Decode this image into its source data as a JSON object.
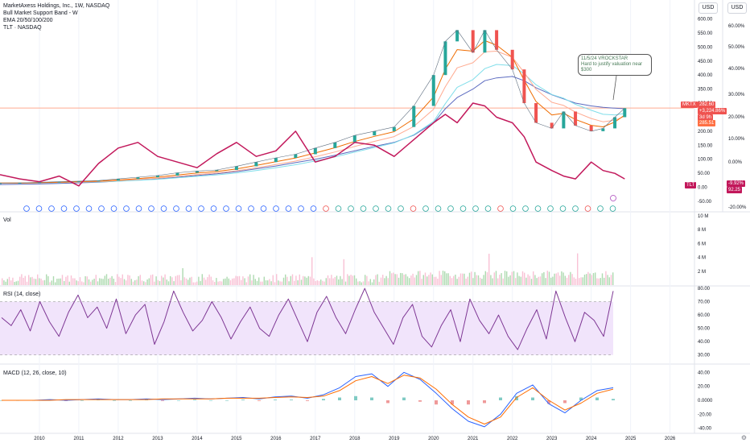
{
  "legend": {
    "title": "MarketAxess Holdings, Inc., 1W, NASDAQ",
    "line2": "Bull Market Support Band - W",
    "line3": "EMA 20/50/100/200",
    "line4": "TLT · NASDAQ"
  },
  "scales": {
    "left_currency": "USD",
    "right_currency": "USD"
  },
  "note": {
    "line1": "11/5/24 VROCKSTAR",
    "line2": "Hard to justify valuation near",
    "line3": "$300"
  },
  "badges": {
    "symbol": "MKTX",
    "price": "282.60",
    "change_pct": "+3,224.86%",
    "countdown": "3d 9h",
    "ma_value": "285.51",
    "tlt_label": "TLT",
    "tlt_pct": "-9.92%",
    "tlt_price": "92.25"
  },
  "colors": {
    "mktx_candle_up": "#26a69a",
    "mktx_candle_down": "#ef5350",
    "tlt_line": "#c2185b",
    "ema20": "#ef6c00",
    "ema50": "#ffab91",
    "ema100": "#80deea",
    "ema200": "#5c6bc0",
    "hline": "#ffab91",
    "rsi_line": "#7e3794",
    "rsi_band": "#f1e4fb",
    "macd_line": "#2962ff",
    "signal_line": "#ff6d00"
  },
  "chart_data": [
    {
      "type": "line",
      "name": "price-pane",
      "x_labels": [
        "2010",
        "2011",
        "2012",
        "2013",
        "2014",
        "2015",
        "2016",
        "2017",
        "2018",
        "2019",
        "2020",
        "2021",
        "2022",
        "2023",
        "2024",
        "2025",
        "2026"
      ],
      "y_left_ticks": [
        "600.00",
        "550.00",
        "500.00",
        "450.00",
        "400.00",
        "350.00",
        "300.00",
        "250.00",
        "200.00",
        "150.00",
        "100.00",
        "50.00",
        "0.00",
        "-50.00"
      ],
      "y_right_ticks": [
        "60.00%",
        "50.00%",
        "40.00%",
        "30.00%",
        "20.00%",
        "10.00%",
        "0.00%",
        "-20.00%"
      ],
      "ylim": [
        -50,
        610
      ],
      "x": [
        2009.0,
        2009.5,
        2010.0,
        2010.5,
        2011.0,
        2011.5,
        2012.0,
        2012.5,
        2013.0,
        2013.5,
        2014.0,
        2014.5,
        2015.0,
        2015.5,
        2016.0,
        2016.5,
        2017.0,
        2017.5,
        2018.0,
        2018.5,
        2019.0,
        2019.5,
        2020.0,
        2020.3,
        2020.6,
        2021.0,
        2021.3,
        2021.6,
        2022.0,
        2022.3,
        2022.6,
        2023.0,
        2023.3,
        2023.6,
        2024.0,
        2024.3,
        2024.6,
        2024.85
      ],
      "series": [
        {
          "name": "MKTX",
          "values": [
            15,
            16,
            18,
            20,
            22,
            24,
            30,
            36,
            42,
            52,
            58,
            62,
            75,
            90,
            105,
            118,
            140,
            160,
            185,
            200,
            215,
            290,
            400,
            520,
            560,
            480,
            560,
            490,
            420,
            300,
            230,
            210,
            270,
            220,
            200,
            210,
            250,
            282
          ]
        },
        {
          "name": "TLT",
          "values": [
            45,
            30,
            20,
            40,
            5,
            85,
            140,
            160,
            110,
            90,
            70,
            120,
            160,
            110,
            130,
            200,
            90,
            110,
            160,
            150,
            110,
            170,
            230,
            260,
            230,
            300,
            290,
            250,
            230,
            180,
            90,
            60,
            40,
            30,
            90,
            60,
            50,
            30
          ]
        }
      ],
      "ema200": [
        10,
        11,
        12,
        14,
        16,
        18,
        22,
        26,
        30,
        36,
        42,
        48,
        56,
        66,
        76,
        88,
        100,
        114,
        130,
        146,
        160,
        186,
        230,
        280,
        320,
        350,
        380,
        390,
        395,
        380,
        355,
        330,
        315,
        300,
        290,
        285,
        282,
        280
      ],
      "hline": 282.6
    },
    {
      "type": "bar",
      "name": "volume",
      "label": "Vol",
      "y_ticks": [
        "10 M",
        "8 M",
        "6 M",
        "4 M",
        "2 M"
      ],
      "ylim": [
        0,
        10
      ]
    },
    {
      "type": "line",
      "name": "rsi",
      "label": "RSI (14, close)",
      "y_ticks": [
        "80.00",
        "70.00",
        "60.00",
        "50.00",
        "40.00",
        "30.00"
      ],
      "ylim": [
        25,
        80
      ],
      "band": [
        30,
        70
      ],
      "values": [
        58,
        52,
        64,
        48,
        70,
        55,
        44,
        62,
        75,
        58,
        66,
        50,
        72,
        46,
        60,
        68,
        38,
        55,
        78,
        62,
        48,
        56,
        70,
        58,
        42,
        55,
        66,
        50,
        44,
        60,
        72,
        56,
        40,
        62,
        74,
        58,
        46,
        64,
        80,
        62,
        50,
        38,
        58,
        68,
        44,
        36,
        52,
        64,
        40,
        72,
        56,
        46,
        60,
        44,
        34,
        50,
        64,
        42,
        78,
        58,
        40,
        62,
        56,
        44,
        78
      ]
    },
    {
      "type": "line",
      "name": "macd",
      "label": "MACD (12, 26, close, 10)",
      "y_ticks": [
        "40.00",
        "20.00",
        "0.0000",
        "-20.00",
        "-40.00"
      ],
      "ylim": [
        -45,
        45
      ],
      "series": [
        {
          "name": "MACD",
          "values": [
            0,
            0,
            0,
            1,
            0,
            1,
            2,
            1,
            1,
            2,
            1,
            2,
            3,
            2,
            3,
            4,
            2,
            5,
            6,
            3,
            8,
            18,
            34,
            38,
            20,
            40,
            30,
            10,
            -12,
            -30,
            -38,
            -20,
            10,
            22,
            -5,
            -18,
            0,
            14,
            18
          ]
        },
        {
          "name": "Signal",
          "values": [
            0,
            0,
            0,
            0,
            1,
            1,
            1,
            1,
            1,
            1,
            2,
            2,
            2,
            2,
            3,
            3,
            3,
            4,
            5,
            4,
            6,
            14,
            28,
            34,
            24,
            36,
            32,
            16,
            -6,
            -24,
            -34,
            -24,
            4,
            18,
            0,
            -14,
            -4,
            10,
            16
          ]
        }
      ]
    }
  ]
}
